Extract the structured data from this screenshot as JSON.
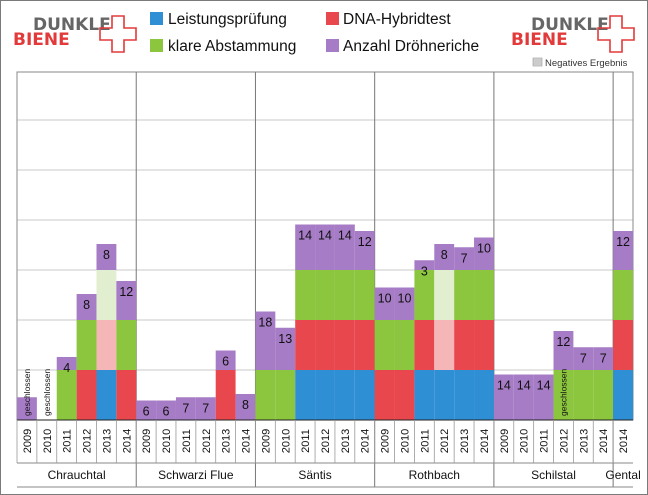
{
  "logo": {
    "line1": "DUNKLE",
    "line2": "BIENE"
  },
  "legend": [
    {
      "key": "leistung",
      "label": "Leistungsprüfung",
      "color": "#2f8fd4"
    },
    {
      "key": "dna",
      "label": "DNA-Hybridtest",
      "color": "#e8474e"
    },
    {
      "key": "abstammung",
      "label": "klare Abstammung",
      "color": "#8cc63f"
    },
    {
      "key": "drohnen",
      "label": "Anzahl Dröhneriche",
      "color": "#a77cc6"
    }
  ],
  "negative_label": "Negatives Ergebnis",
  "colors": {
    "leistung": "#2f8fd4",
    "dna": "#e8474e",
    "abstammung": "#8cc63f",
    "drohnen": "#a77cc6",
    "dna_neg": "#f4b6b6",
    "abstammung_neg": "#e1efd0",
    "grid": "#c8c8c8",
    "axis": "#222222"
  },
  "chart_data": {
    "type": "bar",
    "title": "",
    "xlabel": "",
    "ylabel": "",
    "grid": true,
    "legend_position": "top",
    "groups": [
      {
        "name": "Chrauchtal",
        "years": [
          {
            "year": "2009",
            "segments": [],
            "drones": 7,
            "drones_label": "",
            "note": "geschlossen"
          },
          {
            "year": "2010",
            "segments": [],
            "drones": 0,
            "drones_label": "",
            "note": "geschlossen"
          },
          {
            "year": "2011",
            "segments": [
              "abstammung"
            ],
            "drones": 4,
            "drones_label": "4",
            "note": ""
          },
          {
            "year": "2012",
            "segments": [
              "dna",
              "abstammung"
            ],
            "drones": 8,
            "drones_label": "8",
            "note": ""
          },
          {
            "year": "2013",
            "segments": [
              "leistung",
              "dna_neg",
              "abstammung_neg"
            ],
            "drones": 8,
            "drones_label": "8",
            "note": ""
          },
          {
            "year": "2014",
            "segments": [
              "dna",
              "abstammung"
            ],
            "drones": 12,
            "drones_label": "12",
            "note": ""
          }
        ]
      },
      {
        "name": "Schwarzi Flue",
        "years": [
          {
            "year": "2009",
            "segments": [],
            "drones": 6,
            "drones_label": "6",
            "note": ""
          },
          {
            "year": "2010",
            "segments": [],
            "drones": 6,
            "drones_label": "6",
            "note": ""
          },
          {
            "year": "2011",
            "segments": [],
            "drones": 7,
            "drones_label": "7",
            "note": ""
          },
          {
            "year": "2012",
            "segments": [],
            "drones": 7,
            "drones_label": "7",
            "note": ""
          },
          {
            "year": "2013",
            "segments": [
              "dna"
            ],
            "drones": 6,
            "drones_label": "6",
            "note": ""
          },
          {
            "year": "2014",
            "segments": [],
            "drones": 8,
            "drones_label": "8",
            "note": ""
          }
        ]
      },
      {
        "name": "Säntis",
        "years": [
          {
            "year": "2009",
            "segments": [
              "abstammung"
            ],
            "drones": 18,
            "drones_label": "18",
            "note": ""
          },
          {
            "year": "2010",
            "segments": [
              "abstammung"
            ],
            "drones": 13,
            "drones_label": "13",
            "note": ""
          },
          {
            "year": "2011",
            "segments": [
              "leistung",
              "dna",
              "abstammung"
            ],
            "drones": 14,
            "drones_label": "14",
            "note": ""
          },
          {
            "year": "2012",
            "segments": [
              "leistung",
              "dna",
              "abstammung"
            ],
            "drones": 14,
            "drones_label": "14",
            "note": ""
          },
          {
            "year": "2013",
            "segments": [
              "leistung",
              "dna",
              "abstammung"
            ],
            "drones": 14,
            "drones_label": "14",
            "note": ""
          },
          {
            "year": "2014",
            "segments": [
              "leistung",
              "dna",
              "abstammung"
            ],
            "drones": 12,
            "drones_label": "12",
            "note": ""
          }
        ]
      },
      {
        "name": "Rothbach",
        "years": [
          {
            "year": "2009",
            "segments": [
              "dna",
              "abstammung"
            ],
            "drones": 10,
            "drones_label": "10",
            "note": ""
          },
          {
            "year": "2010",
            "segments": [
              "dna",
              "abstammung"
            ],
            "drones": 10,
            "drones_label": "10",
            "note": ""
          },
          {
            "year": "2011",
            "segments": [
              "leistung",
              "dna",
              "abstammung"
            ],
            "drones": 3,
            "drones_label": "3",
            "note": ""
          },
          {
            "year": "2012",
            "segments": [
              "leistung",
              "dna_neg",
              "abstammung_neg"
            ],
            "drones": 8,
            "drones_label": "8",
            "note": ""
          },
          {
            "year": "2013",
            "segments": [
              "leistung",
              "dna",
              "abstammung"
            ],
            "drones": 7,
            "drones_label": "7",
            "note": ""
          },
          {
            "year": "2014",
            "segments": [
              "leistung",
              "dna",
              "abstammung"
            ],
            "drones": 10,
            "drones_label": "10",
            "note": ""
          }
        ]
      },
      {
        "name": "Schilstal",
        "years": [
          {
            "year": "2009",
            "segments": [],
            "drones": 14,
            "drones_label": "14",
            "note": ""
          },
          {
            "year": "2010",
            "segments": [],
            "drones": 14,
            "drones_label": "14",
            "note": ""
          },
          {
            "year": "2011",
            "segments": [],
            "drones": 14,
            "drones_label": "14",
            "note": ""
          },
          {
            "year": "2012",
            "segments": [
              "abstammung"
            ],
            "drones": 12,
            "drones_label": "12",
            "note": "geschlossen"
          },
          {
            "year": "2013",
            "segments": [
              "abstammung"
            ],
            "drones": 7,
            "drones_label": "7",
            "note": ""
          },
          {
            "year": "2014",
            "segments": [
              "abstammung"
            ],
            "drones": 7,
            "drones_label": "7",
            "note": ""
          }
        ]
      },
      {
        "name": "Gental",
        "years": [
          {
            "year": "2014",
            "segments": [
              "leistung",
              "dna",
              "abstammung"
            ],
            "drones": 12,
            "drones_label": "12",
            "note": ""
          }
        ]
      }
    ]
  }
}
